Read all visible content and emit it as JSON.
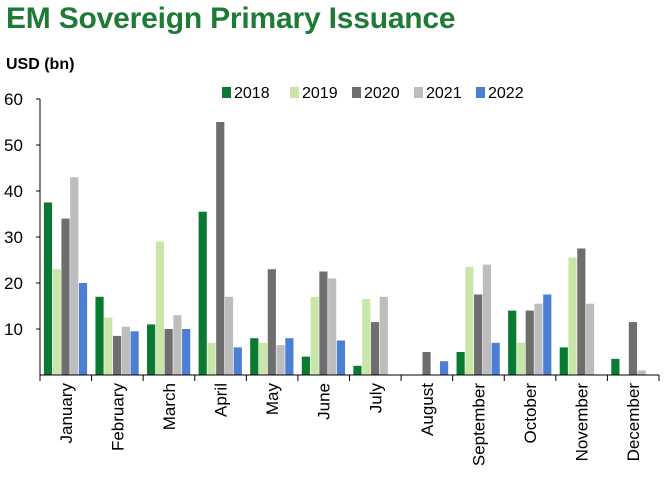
{
  "chart_data": {
    "type": "bar",
    "title": "EM Sovereign Primary Issuance",
    "ylabel": "USD (bn)",
    "xlabel": "",
    "ylim": [
      0,
      60
    ],
    "yticks": [
      10,
      20,
      30,
      40,
      50,
      60
    ],
    "legend_position": "top",
    "grid": false,
    "categories": [
      "January",
      "February",
      "March",
      "April",
      "May",
      "June",
      "July",
      "August",
      "September",
      "October",
      "November",
      "December"
    ],
    "series": [
      {
        "name": "2018",
        "color": "#0a7a32",
        "values": [
          37.5,
          17,
          11,
          35.5,
          8,
          4,
          2,
          0,
          5,
          14,
          6,
          3.5
        ]
      },
      {
        "name": "2019",
        "color": "#c8e6a8",
        "values": [
          23,
          12.5,
          29,
          7,
          7,
          17,
          16.5,
          0,
          23.5,
          7,
          25.5,
          0
        ]
      },
      {
        "name": "2020",
        "color": "#6e6e6e",
        "values": [
          34,
          8.5,
          10,
          55,
          23,
          22.5,
          11.5,
          5,
          17.5,
          14,
          27.5,
          11.5
        ]
      },
      {
        "name": "2021",
        "color": "#bdbdbd",
        "values": [
          43,
          10.5,
          13,
          17,
          6.5,
          21,
          17,
          0,
          24,
          15.5,
          15.5,
          1
        ]
      },
      {
        "name": "2022",
        "color": "#4a7fd4",
        "values": [
          20,
          9.5,
          10,
          6,
          8,
          7.5,
          0,
          3,
          7,
          17.5,
          0,
          0
        ]
      }
    ]
  }
}
